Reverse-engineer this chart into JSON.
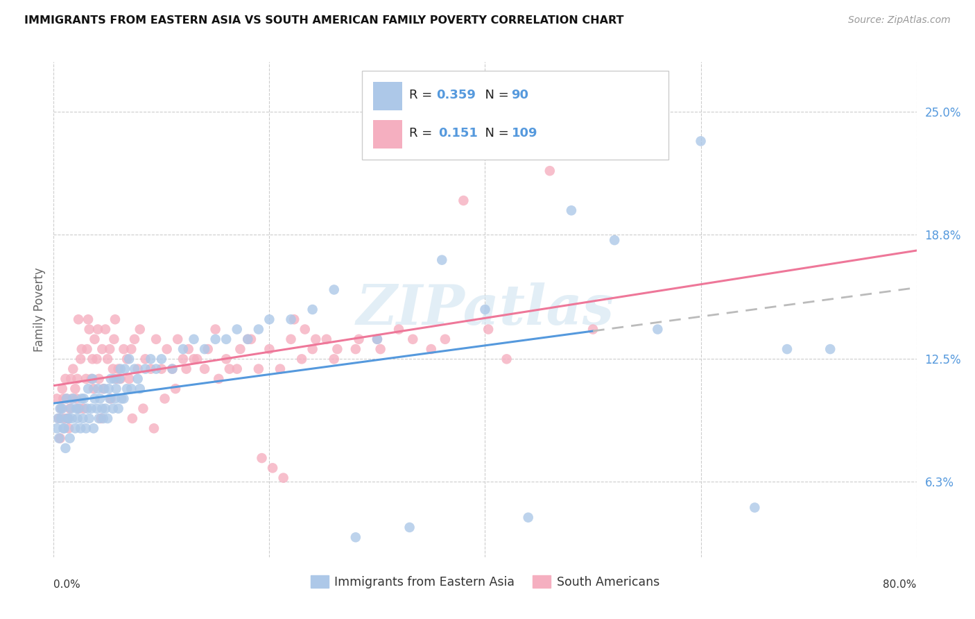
{
  "title": "IMMIGRANTS FROM EASTERN ASIA VS SOUTH AMERICAN FAMILY POVERTY CORRELATION CHART",
  "source": "Source: ZipAtlas.com",
  "ylabel": "Family Poverty",
  "ytick_labels": [
    "6.3%",
    "12.5%",
    "18.8%",
    "25.0%"
  ],
  "ytick_vals": [
    6.3,
    12.5,
    18.8,
    25.0
  ],
  "legend_blue_R": "0.359",
  "legend_blue_N": "90",
  "legend_pink_R": "0.151",
  "legend_pink_N": "109",
  "blue_scatter_color": "#adc8e8",
  "pink_scatter_color": "#f5afc0",
  "line_blue_color": "#5599dd",
  "line_pink_color": "#ee7799",
  "line_dashed_color": "#bbbbbb",
  "watermark_color": "#d0e4f0",
  "blue_scatter_x": [
    0.3,
    0.5,
    0.7,
    0.8,
    1.0,
    1.1,
    1.2,
    1.3,
    1.5,
    1.6,
    1.7,
    1.8,
    2.0,
    2.1,
    2.2,
    2.3,
    2.5,
    2.6,
    2.7,
    2.8,
    3.0,
    3.1,
    3.2,
    3.3,
    3.5,
    3.6,
    3.7,
    3.8,
    4.0,
    4.1,
    4.2,
    4.3,
    4.5,
    4.6,
    4.7,
    4.8,
    5.0,
    5.1,
    5.2,
    5.3,
    5.5,
    5.6,
    5.7,
    5.8,
    6.0,
    6.1,
    6.2,
    6.3,
    6.5,
    6.6,
    6.8,
    7.0,
    7.2,
    7.5,
    7.8,
    8.0,
    8.5,
    9.0,
    9.5,
    10.0,
    11.0,
    12.0,
    13.0,
    14.0,
    15.0,
    16.0,
    17.0,
    18.0,
    19.0,
    20.0,
    22.0,
    24.0,
    26.0,
    28.0,
    30.0,
    33.0,
    36.0,
    40.0,
    44.0,
    48.0,
    52.0,
    56.0,
    60.0,
    65.0,
    68.0,
    72.0,
    0.4,
    0.6,
    0.9,
    1.4
  ],
  "blue_scatter_y": [
    9.0,
    8.5,
    9.5,
    10.0,
    9.0,
    8.0,
    10.5,
    9.5,
    8.5,
    10.0,
    9.5,
    10.5,
    9.0,
    10.0,
    9.5,
    10.0,
    9.0,
    10.5,
    9.5,
    10.5,
    9.0,
    10.0,
    11.0,
    9.5,
    10.0,
    11.5,
    9.0,
    10.5,
    10.0,
    11.0,
    9.5,
    10.5,
    10.0,
    9.5,
    11.0,
    10.0,
    9.5,
    11.0,
    10.5,
    11.5,
    10.0,
    11.5,
    10.5,
    11.0,
    10.0,
    11.5,
    12.0,
    10.5,
    10.5,
    12.0,
    11.0,
    12.5,
    11.0,
    12.0,
    11.5,
    11.0,
    12.0,
    12.5,
    12.0,
    12.5,
    12.0,
    13.0,
    13.5,
    13.0,
    13.5,
    13.5,
    14.0,
    13.5,
    14.0,
    14.5,
    14.5,
    15.0,
    16.0,
    3.5,
    13.5,
    4.0,
    17.5,
    15.0,
    4.5,
    20.0,
    18.5,
    14.0,
    23.5,
    5.0,
    13.0,
    13.0,
    9.5,
    10.0,
    9.0,
    9.5
  ],
  "pink_scatter_x": [
    0.3,
    0.5,
    0.7,
    0.8,
    1.0,
    1.1,
    1.2,
    1.3,
    1.5,
    1.6,
    1.7,
    1.8,
    2.0,
    2.1,
    2.2,
    2.3,
    2.5,
    2.6,
    2.8,
    3.0,
    3.1,
    3.2,
    3.5,
    3.6,
    3.7,
    3.8,
    4.0,
    4.1,
    4.2,
    4.5,
    4.6,
    4.8,
    5.0,
    5.2,
    5.3,
    5.5,
    5.6,
    5.8,
    6.0,
    6.2,
    6.5,
    6.8,
    7.0,
    7.2,
    7.5,
    7.8,
    8.0,
    8.5,
    9.0,
    9.5,
    10.0,
    10.5,
    11.0,
    11.5,
    12.0,
    12.5,
    13.0,
    14.0,
    15.0,
    16.0,
    17.0,
    18.0,
    19.0,
    20.0,
    21.0,
    22.0,
    23.0,
    24.0,
    26.0,
    28.0,
    30.0,
    32.0,
    35.0,
    38.0,
    42.0,
    46.0,
    50.0,
    0.6,
    0.9,
    1.4,
    2.4,
    3.3,
    4.4,
    5.7,
    7.3,
    8.3,
    9.3,
    10.3,
    11.3,
    12.3,
    13.3,
    14.3,
    15.3,
    16.3,
    17.3,
    18.3,
    19.3,
    20.3,
    21.3,
    22.3,
    23.3,
    24.3,
    25.3,
    26.3,
    28.3,
    30.3,
    33.3,
    36.3,
    40.3
  ],
  "pink_scatter_y": [
    10.5,
    9.5,
    10.0,
    11.0,
    9.5,
    11.5,
    10.5,
    9.5,
    10.0,
    11.5,
    10.5,
    12.0,
    11.0,
    10.5,
    11.5,
    14.5,
    12.5,
    13.0,
    10.0,
    11.5,
    13.0,
    14.5,
    11.5,
    12.5,
    11.0,
    13.5,
    12.5,
    14.0,
    11.5,
    13.0,
    11.0,
    14.0,
    12.5,
    13.0,
    10.5,
    12.0,
    13.5,
    11.5,
    12.0,
    11.5,
    13.0,
    12.5,
    11.5,
    13.0,
    13.5,
    12.0,
    14.0,
    12.5,
    12.0,
    13.5,
    12.0,
    13.0,
    12.0,
    13.5,
    12.5,
    13.0,
    12.5,
    12.0,
    14.0,
    12.5,
    12.0,
    13.5,
    12.0,
    13.0,
    12.0,
    13.5,
    12.5,
    13.0,
    12.5,
    13.0,
    13.5,
    14.0,
    13.0,
    20.5,
    12.5,
    22.0,
    14.0,
    8.5,
    10.5,
    9.0,
    10.0,
    14.0,
    9.5,
    14.5,
    9.5,
    10.0,
    9.0,
    10.5,
    11.0,
    12.0,
    12.5,
    13.0,
    11.5,
    12.0,
    13.0,
    13.5,
    7.5,
    7.0,
    6.5,
    14.5,
    14.0,
    13.5,
    13.5,
    13.0,
    13.5,
    13.0,
    13.5,
    13.5,
    14.0
  ],
  "xmin": 0,
  "xmax": 80,
  "ymin": 2.5,
  "ymax": 27.5,
  "figwidth": 14.06,
  "figheight": 8.92
}
